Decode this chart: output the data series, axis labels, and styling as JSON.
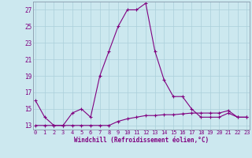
{
  "xlabel": "Windchill (Refroidissement éolien,°C)",
  "hours": [
    0,
    1,
    2,
    3,
    4,
    5,
    6,
    7,
    8,
    9,
    10,
    11,
    12,
    13,
    14,
    15,
    16,
    17,
    18,
    19,
    20,
    21,
    22,
    23
  ],
  "windchill": [
    16,
    14,
    13,
    13,
    14.5,
    15,
    14,
    19,
    22,
    25,
    27,
    27,
    27.8,
    22,
    18.5,
    16.5,
    16.5,
    15,
    14,
    14,
    14,
    14.5,
    14,
    14
  ],
  "temp": [
    13,
    13,
    13,
    13,
    13,
    13,
    13,
    13,
    13,
    13.5,
    13.8,
    14,
    14.2,
    14.2,
    14.3,
    14.3,
    14.4,
    14.5,
    14.5,
    14.5,
    14.5,
    14.8,
    14,
    14
  ],
  "line_color": "#800080",
  "bg_color": "#cce8ef",
  "grid_color": "#aacfda",
  "ylim_min": 12.5,
  "ylim_max": 28.0,
  "yticks": [
    13,
    15,
    17,
    19,
    21,
    23,
    25,
    27
  ],
  "xtick_labels": [
    "0",
    "1",
    "2",
    "3",
    "4",
    "5",
    "6",
    "7",
    "8",
    "9",
    "10",
    "11",
    "12",
    "13",
    "14",
    "15",
    "16",
    "17",
    "18",
    "19",
    "20",
    "21",
    "22",
    "23"
  ]
}
